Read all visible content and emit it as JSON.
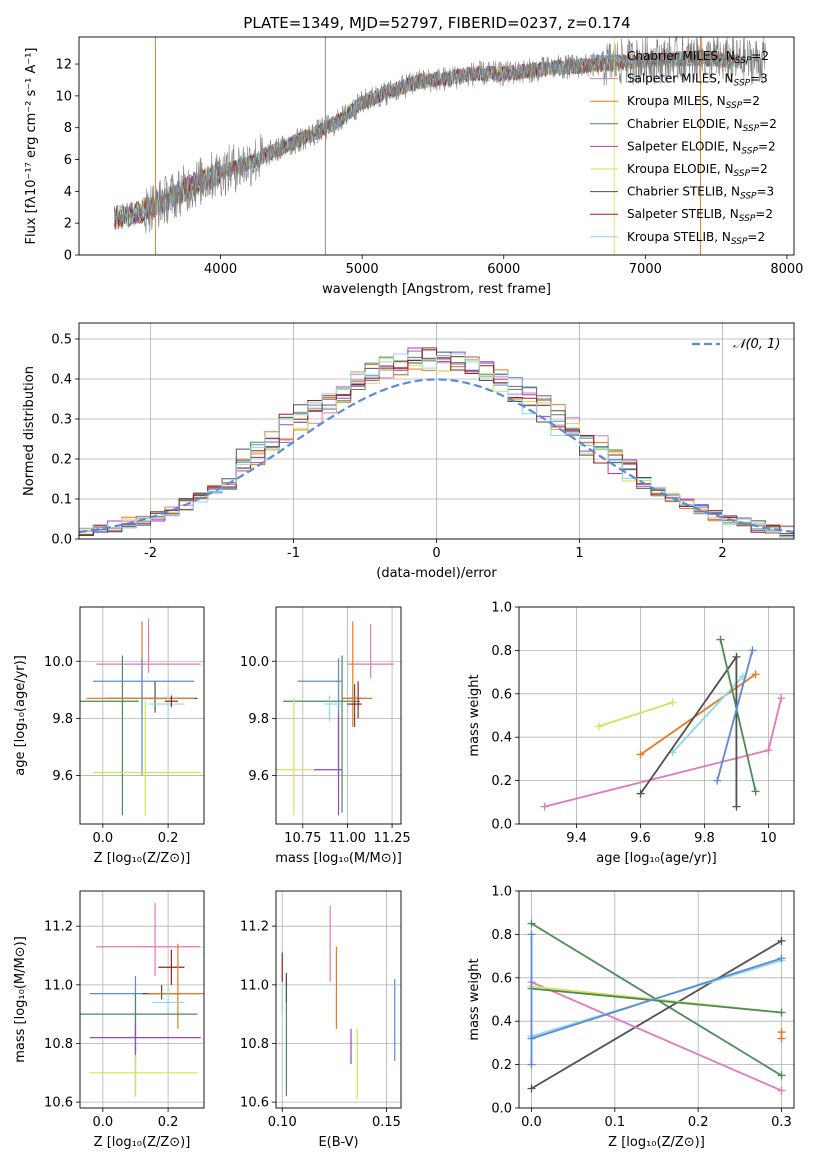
{
  "title": "PLATE=1349, MJD=52797, FIBERID=0237, z=0.174",
  "colors": {
    "axes": "#000000",
    "grid": "#b0b0b0",
    "obs": "#808080",
    "normal": "#5b8bd6"
  },
  "chart_data": [
    {
      "id": "spectrum",
      "type": "line",
      "xlabel": "wavelength [Angstrom, rest frame]",
      "ylabel": "Flux [fλ10⁻¹⁷ erg cm⁻² s⁻¹ A⁻¹]",
      "xlim": [
        3000,
        8050
      ],
      "ylim": [
        0,
        13.7
      ],
      "xticks": [
        4000,
        5000,
        6000,
        7000,
        8000
      ],
      "yticks": [
        0,
        2,
        4,
        6,
        8,
        10,
        12
      ],
      "grid": false,
      "legend_position": "top-right",
      "continuum": {
        "x": [
          3250,
          3400,
          3600,
          3800,
          4000,
          4200,
          4400,
          4600,
          4800,
          5000,
          5200,
          5400,
          5600,
          5800,
          6000,
          6200,
          6400,
          6600,
          6800,
          7000,
          7200,
          7400,
          7600
        ],
        "y": [
          2.3,
          2.6,
          3.4,
          4.4,
          5.2,
          5.8,
          6.6,
          7.4,
          8.2,
          9.6,
          10.3,
          10.9,
          11.1,
          11.4,
          11.4,
          11.6,
          11.8,
          11.9,
          12.1,
          12.2,
          12.3,
          12.4,
          12.2
        ]
      },
      "observed_range": [
        3250,
        7850
      ],
      "series": [
        {
          "name": "Chabrier MILES, N_SSP=2",
          "color": "#5b8bd6"
        },
        {
          "name": "Salpeter MILES, N_SSP=3",
          "color": "#e07ab8"
        },
        {
          "name": "Kroupa MILES, N_SSP=2",
          "color": "#e47b25"
        },
        {
          "name": "Chabrier ELODIE, N_SSP=2",
          "color": "#4e8a57"
        },
        {
          "name": "Salpeter ELODIE, N_SSP=2",
          "color": "#9b45c2"
        },
        {
          "name": "Kroupa ELODIE, N_SSP=2",
          "color": "#d6e05a"
        },
        {
          "name": "Chabrier STELIB, N_SSP=3",
          "color": "#505050"
        },
        {
          "name": "Salpeter STELIB, N_SSP=2",
          "color": "#a01d1d"
        },
        {
          "name": "Kroupa STELIB, N_SSP=2",
          "color": "#8fd9e6"
        }
      ]
    },
    {
      "id": "residuals",
      "type": "line",
      "xlabel": "(data-model)/error",
      "ylabel": "Normed distribution",
      "xlim": [
        -2.5,
        2.5
      ],
      "ylim": [
        0,
        0.54
      ],
      "xticks": [
        -2,
        -1,
        0,
        1,
        2
      ],
      "yticks": [
        0.0,
        0.1,
        0.2,
        0.3,
        0.4,
        0.5
      ],
      "grid": true,
      "legend_position": "top-right",
      "legend_label": "𝒩(0, 1)",
      "reference_curve": "normal(0,1)",
      "bin_width": 0.1
    },
    {
      "id": "age-vs-Z",
      "type": "scatter",
      "xlabel": "Z [log₁₀(Z/Z⊙)]",
      "ylabel": "age  [log₁₀(age/yr)]",
      "xlim": [
        -0.07,
        0.31
      ],
      "ylim": [
        9.43,
        10.19
      ],
      "xticks": [
        0.0,
        0.2
      ],
      "xtick_labels": [
        "0.0",
        "0.2"
      ],
      "yticks": [
        9.6,
        9.8,
        10.0
      ],
      "grid": true,
      "points": [
        {
          "x": 0.14,
          "y": 9.99,
          "xerr": [
            0.16,
            0.16
          ],
          "yerr": [
            0.03,
            0.16
          ],
          "color": "#e07ab8"
        },
        {
          "x": 0.06,
          "y": 9.86,
          "xerr": [
            0.14,
            0.05
          ],
          "yerr": [
            0.4,
            0.16
          ],
          "color": "#4e8a57"
        },
        {
          "x": 0.16,
          "y": 9.87,
          "xerr": [
            0.15,
            0.13
          ],
          "yerr": [
            0.05,
            0.06
          ],
          "color": "#505050"
        },
        {
          "x": 0.12,
          "y": 9.87,
          "xerr": [
            0.17,
            0.16
          ],
          "yerr": [
            0.06,
            0.27
          ],
          "color": "#e47b25"
        },
        {
          "x": 0.12,
          "y": 9.93,
          "xerr": [
            0.15,
            0.16
          ],
          "yerr": [
            0.33,
            0.08
          ],
          "color": "#5b8bd6"
        },
        {
          "x": 0.2,
          "y": 9.85,
          "xerr": [
            0.06,
            0.05
          ],
          "yerr": [
            0.07,
            0.03
          ],
          "color": "#8fd9e6"
        },
        {
          "x": 0.13,
          "y": 9.61,
          "xerr": [
            0.16,
            0.17
          ],
          "yerr": [
            0.15,
            0.25
          ],
          "color": "#d6e05a"
        },
        {
          "x": 0.21,
          "y": 9.86,
          "xerr": [
            0.02,
            0.02
          ],
          "yerr": [
            0.02,
            0.02
          ],
          "color": "#a01d1d"
        }
      ]
    },
    {
      "id": "age-vs-mass",
      "type": "scatter",
      "xlabel": "mass [log₁₀(M/M⊙)]",
      "ylabel": "",
      "xlim": [
        10.6,
        11.3
      ],
      "ylim": [
        9.43,
        10.19
      ],
      "xticks": [
        10.75,
        11.0,
        11.25
      ],
      "xtick_labels": [
        "10.75",
        "11.00",
        "11.25"
      ],
      "yticks": [
        9.6,
        9.8,
        10.0
      ],
      "grid": true,
      "points": [
        {
          "x": 11.13,
          "y": 9.99,
          "xerr": [
            0.13,
            0.13
          ],
          "yerr": [
            0.05,
            0.14
          ],
          "color": "#e07ab8"
        },
        {
          "x": 10.97,
          "y": 9.86,
          "xerr": [
            0.33,
            0.1
          ],
          "yerr": [
            0.39,
            0.16
          ],
          "color": "#4e8a57"
        },
        {
          "x": 11.04,
          "y": 9.87,
          "xerr": [
            0.07,
            0.07
          ],
          "yerr": [
            0.1,
            0.05
          ],
          "color": "#505050"
        },
        {
          "x": 11.03,
          "y": 9.87,
          "xerr": [
            0.06,
            0.11
          ],
          "yerr": [
            0.1,
            0.27
          ],
          "color": "#e47b25"
        },
        {
          "x": 10.95,
          "y": 9.93,
          "xerr": [
            0.23,
            0.02
          ],
          "yerr": [
            0.34,
            0.08
          ],
          "color": "#5b8bd6"
        },
        {
          "x": 10.9,
          "y": 9.85,
          "xerr": [
            0.03,
            0.07
          ],
          "yerr": [
            0.06,
            0.03
          ],
          "color": "#8fd9e6"
        },
        {
          "x": 10.7,
          "y": 9.62,
          "xerr": [
            0.12,
            0.1
          ],
          "yerr": [
            0.16,
            0.25
          ],
          "color": "#d6e05a"
        },
        {
          "x": 11.06,
          "y": 9.85,
          "xerr": [
            0.06,
            0.02
          ],
          "yerr": [
            0.05,
            0.08
          ],
          "color": "#a01d1d"
        },
        {
          "x": 10.95,
          "y": 9.62,
          "xerr": [
            0.14,
            0.02
          ],
          "yerr": [
            0.16,
            0.2
          ],
          "color": "#9b45c2"
        }
      ]
    },
    {
      "id": "weight-vs-age",
      "type": "line",
      "xlabel": "age  [log₁₀(age/yr)]",
      "ylabel": "mass weight",
      "xlim": [
        9.22,
        10.08
      ],
      "ylim": [
        0,
        1
      ],
      "xticks": [
        9.4,
        9.6,
        9.8,
        10.0
      ],
      "yticks": [
        0.0,
        0.2,
        0.4,
        0.6,
        0.8,
        1.0
      ],
      "grid": true,
      "series": [
        {
          "color": "#e07ab8",
          "x": [
            9.3,
            10.0,
            10.04
          ],
          "y": [
            0.08,
            0.34,
            0.58
          ]
        },
        {
          "color": "#d6e05a",
          "x": [
            9.47,
            9.7
          ],
          "y": [
            0.45,
            0.56
          ]
        },
        {
          "color": "#e47b25",
          "x": [
            9.6,
            9.96
          ],
          "y": [
            0.32,
            0.69
          ]
        },
        {
          "color": "#8fd9e6",
          "x": [
            9.7,
            9.92
          ],
          "y": [
            0.33,
            0.68
          ]
        },
        {
          "color": "#505050",
          "x": [
            9.6,
            9.9,
            9.9
          ],
          "y": [
            0.14,
            0.77,
            0.08
          ]
        },
        {
          "color": "#4e8a57",
          "x": [
            9.85,
            9.96
          ],
          "y": [
            0.85,
            0.15
          ]
        },
        {
          "color": "#5b8bd6",
          "x": [
            9.84,
            9.95
          ],
          "y": [
            0.2,
            0.8
          ]
        }
      ]
    },
    {
      "id": "mass-vs-Z",
      "type": "scatter",
      "xlabel": "Z [log₁₀(Z/Z⊙)]",
      "ylabel": "mass [log₁₀(M/M⊙)]",
      "xlim": [
        -0.07,
        0.31
      ],
      "ylim": [
        10.58,
        11.32
      ],
      "xticks": [
        0.0,
        0.2
      ],
      "xtick_labels": [
        "0.0",
        "0.2"
      ],
      "yticks": [
        10.6,
        10.8,
        11.0,
        11.2
      ],
      "grid": true,
      "points": [
        {
          "x": 0.16,
          "y": 11.13,
          "xerr": [
            0.18,
            0.14
          ],
          "yerr": [
            0.1,
            0.15
          ],
          "color": "#e07ab8"
        },
        {
          "x": 0.21,
          "y": 11.06,
          "xerr": [
            0.04,
            0.04
          ],
          "yerr": [
            0.06,
            0.06
          ],
          "color": "#a01d1d"
        },
        {
          "x": 0.1,
          "y": 10.97,
          "xerr": [
            0.14,
            0.2
          ],
          "yerr": [
            0.23,
            0.06
          ],
          "color": "#5b8bd6"
        },
        {
          "x": 0.18,
          "y": 10.97,
          "xerr": [
            0.06,
            0.06
          ],
          "yerr": [
            0.02,
            0.03
          ],
          "color": "#505050"
        },
        {
          "x": 0.23,
          "y": 10.97,
          "xerr": [
            0.09,
            0.08
          ],
          "yerr": [
            0.12,
            0.17
          ],
          "color": "#e47b25"
        },
        {
          "x": 0.2,
          "y": 10.94,
          "xerr": [
            0.05,
            0.05
          ],
          "yerr": [
            0.04,
            0.05
          ],
          "color": "#8fd9e6"
        },
        {
          "x": 0.1,
          "y": 10.9,
          "xerr": [
            0.17,
            0.19
          ],
          "yerr": [
            0.28,
            0.07
          ],
          "color": "#4e8a57"
        },
        {
          "x": 0.1,
          "y": 10.82,
          "xerr": [
            0.14,
            0.2
          ],
          "yerr": [
            0.05,
            0.05
          ],
          "color": "#9b45c2"
        },
        {
          "x": 0.1,
          "y": 10.7,
          "xerr": [
            0.14,
            0.19
          ],
          "yerr": [
            0.08,
            0.06
          ],
          "color": "#d6e05a"
        }
      ]
    },
    {
      "id": "mass-vs-EBV",
      "type": "scatter",
      "xlabel": "E(B-V)",
      "ylabel": "",
      "xlim": [
        0.097,
        0.157
      ],
      "ylim": [
        10.58,
        11.32
      ],
      "xticks": [
        0.1,
        0.15
      ],
      "xtick_labels": [
        "0.10",
        "0.15"
      ],
      "yticks": [
        10.6,
        10.8,
        11.0,
        11.2
      ],
      "grid": true,
      "points": [
        {
          "x": 0.1,
          "y": 11.06,
          "xerr": [
            0,
            0
          ],
          "yerr": [
            0.05,
            0.05
          ],
          "color": "#a01d1d"
        },
        {
          "x": 0.1,
          "y": 10.95,
          "xerr": [
            0,
            0
          ],
          "yerr": [
            0.05,
            0.05
          ],
          "color": "#8fd9e6"
        },
        {
          "x": 0.102,
          "y": 10.83,
          "xerr": [
            0,
            0
          ],
          "yerr": [
            0.21,
            0.21
          ],
          "color": "#4e8a57"
        },
        {
          "x": 0.102,
          "y": 10.99,
          "xerr": [
            0,
            0
          ],
          "yerr": [
            0.05,
            0.05
          ],
          "color": "#505050"
        },
        {
          "x": 0.123,
          "y": 11.14,
          "xerr": [
            0,
            0
          ],
          "yerr": [
            0.13,
            0.13
          ],
          "color": "#e07ab8"
        },
        {
          "x": 0.126,
          "y": 10.99,
          "xerr": [
            0,
            0
          ],
          "yerr": [
            0.14,
            0.14
          ],
          "color": "#e47b25"
        },
        {
          "x": 0.133,
          "y": 10.79,
          "xerr": [
            0,
            0
          ],
          "yerr": [
            0.06,
            0.06
          ],
          "color": "#9b45c2"
        },
        {
          "x": 0.136,
          "y": 10.73,
          "xerr": [
            0,
            0
          ],
          "yerr": [
            0.12,
            0.12
          ],
          "color": "#d6e05a"
        },
        {
          "x": 0.154,
          "y": 10.88,
          "xerr": [
            0,
            0
          ],
          "yerr": [
            0.14,
            0.14
          ],
          "color": "#5b8bd6"
        }
      ]
    },
    {
      "id": "weight-vs-Z",
      "type": "line",
      "xlabel": "Z [log₁₀(Z/Z⊙)]",
      "ylabel": "mass weight",
      "xlim": [
        -0.015,
        0.315
      ],
      "ylim": [
        0,
        1
      ],
      "xticks": [
        0.0,
        0.1,
        0.2,
        0.3
      ],
      "yticks": [
        0.0,
        0.2,
        0.4,
        0.6,
        0.8,
        1.0
      ],
      "grid": true,
      "series": [
        {
          "color": "#4e8a57",
          "x": [
            0.0,
            0.3
          ],
          "y": [
            0.85,
            0.15
          ]
        },
        {
          "color": "#505050",
          "x": [
            0.0,
            0.3
          ],
          "y": [
            0.09,
            0.77
          ]
        },
        {
          "color": "#e07ab8",
          "x": [
            0.0,
            0.3
          ],
          "y": [
            0.58,
            0.08
          ]
        },
        {
          "color": "#d6e05a",
          "x": [
            0.0,
            0.3
          ],
          "y": [
            0.56,
            0.44
          ]
        },
        {
          "color": "#4e8a57",
          "x": [
            0.0,
            0.3
          ],
          "y": [
            0.55,
            0.44
          ]
        },
        {
          "color": "#8fd9e6",
          "x": [
            0.0,
            0.3
          ],
          "y": [
            0.33,
            0.68
          ]
        },
        {
          "color": "#5b8bd6",
          "x": [
            0.0,
            0.3
          ],
          "y": [
            0.32,
            0.69
          ]
        },
        {
          "color": "#5b8bd6",
          "x": [
            0.0,
            0.0
          ],
          "y": [
            0.2,
            0.8
          ]
        },
        {
          "color": "#e47b25",
          "x": [
            0.3,
            0.3
          ],
          "y": [
            0.32,
            0.35
          ]
        }
      ]
    }
  ]
}
